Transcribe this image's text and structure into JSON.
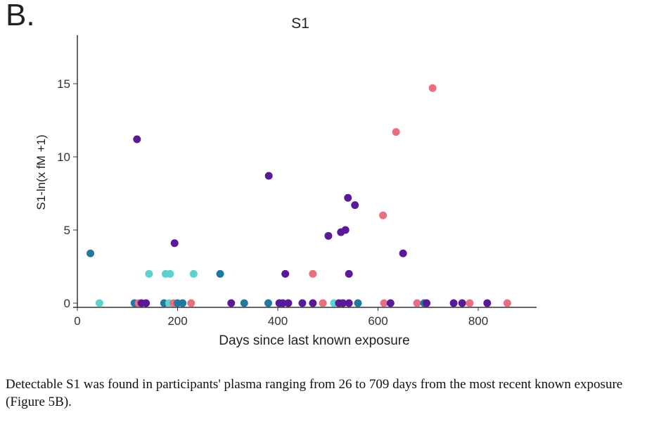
{
  "panel_label": "B.",
  "caption": "Detectable S1 was found in participants' plasma ranging from 26 to 709 days from the most recent known exposure (Figure 5B).",
  "colors": {
    "blue": "#23789f",
    "cyan": "#5fd2cf",
    "pink": "#e86f80",
    "purple": "#5a1a98"
  },
  "chart_data": {
    "type": "scatter",
    "title": "S1",
    "xlabel": "Days since last known exposure",
    "ylabel": "S1-ln(x fM +1)",
    "xlim": [
      0,
      920
    ],
    "ylim": [
      0,
      18
    ],
    "xticks": [
      0,
      200,
      400,
      600,
      800
    ],
    "yticks": [
      0,
      5,
      10,
      15
    ],
    "points": [
      {
        "x": 26,
        "y": 3.4,
        "c": "blue"
      },
      {
        "x": 44,
        "y": 0,
        "c": "cyan"
      },
      {
        "x": 114,
        "y": 0,
        "c": "blue"
      },
      {
        "x": 122,
        "y": 0,
        "c": "pink"
      },
      {
        "x": 128,
        "y": 0,
        "c": "purple"
      },
      {
        "x": 137,
        "y": 0,
        "c": "purple"
      },
      {
        "x": 173,
        "y": 0,
        "c": "blue"
      },
      {
        "x": 183,
        "y": 0,
        "c": "cyan"
      },
      {
        "x": 192,
        "y": 0,
        "c": "pink"
      },
      {
        "x": 200,
        "y": 0,
        "c": "blue"
      },
      {
        "x": 210,
        "y": 0,
        "c": "blue"
      },
      {
        "x": 227,
        "y": 0,
        "c": "pink"
      },
      {
        "x": 307,
        "y": 0,
        "c": "purple"
      },
      {
        "x": 333,
        "y": 0,
        "c": "blue"
      },
      {
        "x": 381,
        "y": 0,
        "c": "blue"
      },
      {
        "x": 403,
        "y": 0,
        "c": "purple"
      },
      {
        "x": 410,
        "y": 0,
        "c": "purple"
      },
      {
        "x": 421,
        "y": 0,
        "c": "purple"
      },
      {
        "x": 449,
        "y": 0,
        "c": "purple"
      },
      {
        "x": 470,
        "y": 0,
        "c": "purple"
      },
      {
        "x": 490,
        "y": 0,
        "c": "pink"
      },
      {
        "x": 512,
        "y": 0,
        "c": "cyan"
      },
      {
        "x": 522,
        "y": 0,
        "c": "purple"
      },
      {
        "x": 530,
        "y": 0,
        "c": "purple"
      },
      {
        "x": 542,
        "y": 0,
        "c": "purple"
      },
      {
        "x": 560,
        "y": 0,
        "c": "blue"
      },
      {
        "x": 612,
        "y": 0,
        "c": "pink"
      },
      {
        "x": 625,
        "y": 0,
        "c": "purple"
      },
      {
        "x": 678,
        "y": 0,
        "c": "pink"
      },
      {
        "x": 692,
        "y": 0,
        "c": "blue"
      },
      {
        "x": 697,
        "y": 0,
        "c": "purple"
      },
      {
        "x": 751,
        "y": 0,
        "c": "purple"
      },
      {
        "x": 768,
        "y": 0,
        "c": "purple"
      },
      {
        "x": 783,
        "y": 0,
        "c": "pink"
      },
      {
        "x": 818,
        "y": 0,
        "c": "purple"
      },
      {
        "x": 858,
        "y": 0,
        "c": "pink"
      },
      {
        "x": 143,
        "y": 2,
        "c": "cyan"
      },
      {
        "x": 176,
        "y": 2,
        "c": "cyan"
      },
      {
        "x": 185,
        "y": 2,
        "c": "cyan"
      },
      {
        "x": 232,
        "y": 2,
        "c": "cyan"
      },
      {
        "x": 285,
        "y": 2,
        "c": "blue"
      },
      {
        "x": 415,
        "y": 2,
        "c": "purple"
      },
      {
        "x": 470,
        "y": 2,
        "c": "pink"
      },
      {
        "x": 542,
        "y": 2,
        "c": "purple"
      },
      {
        "x": 119,
        "y": 11.2,
        "c": "purple"
      },
      {
        "x": 194,
        "y": 4.1,
        "c": "purple"
      },
      {
        "x": 382,
        "y": 8.7,
        "c": "purple"
      },
      {
        "x": 501,
        "y": 4.6,
        "c": "purple"
      },
      {
        "x": 526,
        "y": 4.85,
        "c": "purple"
      },
      {
        "x": 535,
        "y": 5.0,
        "c": "purple"
      },
      {
        "x": 540,
        "y": 7.2,
        "c": "purple"
      },
      {
        "x": 554,
        "y": 6.7,
        "c": "purple"
      },
      {
        "x": 650,
        "y": 3.4,
        "c": "purple"
      },
      {
        "x": 610,
        "y": 6.0,
        "c": "pink"
      },
      {
        "x": 636,
        "y": 11.7,
        "c": "pink"
      },
      {
        "x": 709,
        "y": 14.7,
        "c": "pink"
      }
    ]
  }
}
